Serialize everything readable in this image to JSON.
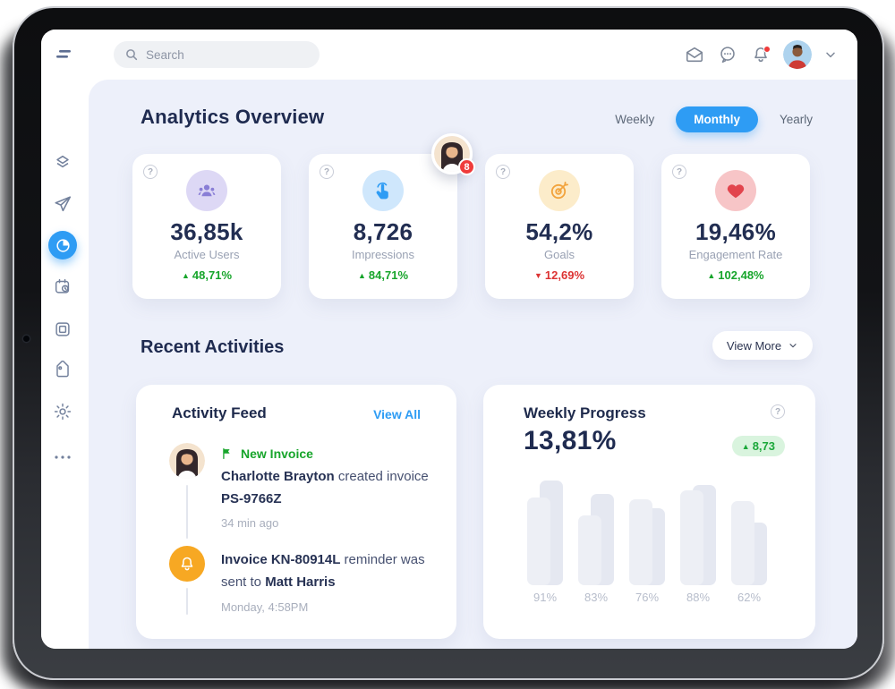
{
  "colors": {
    "accent_blue": "#2e9cf4",
    "navy": "#1f2b50",
    "green": "#17a52b",
    "red": "#dc3333",
    "main_bg": "#edf0fa",
    "badge_green_bg": "#d9f4de",
    "bell_orange": "#f7a823",
    "notif_red": "#ef3b3b"
  },
  "topbar": {
    "search_placeholder": "Search",
    "icons": [
      "menu-icon",
      "envelope-icon",
      "chat-icon",
      "bell-icon",
      "user-avatar",
      "chevron-down-icon"
    ],
    "bell_has_notification": true
  },
  "sidebar": {
    "items": [
      "layers",
      "paper-plane",
      "pie-chart",
      "calendar-clock",
      "frame",
      "tag",
      "gear",
      "more-dots"
    ],
    "active_item": "pie-chart"
  },
  "overview": {
    "title": "Analytics Overview",
    "tabs": [
      {
        "label": "Weekly",
        "active": false
      },
      {
        "label": "Monthly",
        "active": true
      },
      {
        "label": "Yearly",
        "active": false
      }
    ],
    "floating_avatar_badge": "8",
    "stats": [
      {
        "icon": "users",
        "icon_bg": "#ddd8f5",
        "icon_color": "#897ed6",
        "value": "36,85k",
        "label": "Active Users",
        "arrow": "▲",
        "delta": "48,71%",
        "delta_color": "#17a52b"
      },
      {
        "icon": "tap",
        "icon_bg": "#cfe7fc",
        "icon_color": "#2e9cf4",
        "value": "8,726",
        "label": "Impressions",
        "arrow": "▲",
        "delta": "84,71%",
        "delta_color": "#17a52b"
      },
      {
        "icon": "target",
        "icon_bg": "#fcecca",
        "icon_color": "#f2a33c",
        "value": "54,2%",
        "label": "Goals",
        "arrow": "▼",
        "delta": "12,69%",
        "delta_color": "#dc3333"
      },
      {
        "icon": "heart",
        "icon_bg": "#f7c5c7",
        "icon_color": "#e2444d",
        "value": "19,46%",
        "label": "Engagement Rate",
        "arrow": "▲",
        "delta": "102,48%",
        "delta_color": "#17a52b"
      }
    ]
  },
  "recent": {
    "title": "Recent Activities",
    "view_more": "View More"
  },
  "activity_feed": {
    "title": "Activity Feed",
    "view_all": "View All",
    "items": [
      {
        "tag": "New Invoice",
        "bold_a": "Charlotte Brayton",
        "plain_a": " created invoice ",
        "bold_b": "PS-9766Z",
        "time": "34  min ago"
      },
      {
        "bold_a": "Invoice KN-80914L",
        "plain_a": " reminder was sent to ",
        "bold_b": "Matt Harris",
        "time": "Monday, 4:58PM"
      }
    ]
  },
  "weekly_progress": {
    "title": "Weekly Progress",
    "value": "13,81%",
    "badge_arrow": "▲",
    "badge": "8,73",
    "chart_data": {
      "type": "bar",
      "title": "Weekly Progress",
      "categories": [
        "91%",
        "83%",
        "76%",
        "88%",
        "62%"
      ],
      "series": [
        {
          "name": "back",
          "values": [
            117,
            102,
            86,
            112,
            70
          ]
        },
        {
          "name": "front",
          "values": [
            98,
            78,
            96,
            106,
            94
          ]
        }
      ],
      "value_unit": "bar height px (plot area max 122)",
      "bar_colors": {
        "back": "#e5e8f1",
        "front": "#edeff5"
      },
      "grid": false,
      "legend": false
    }
  }
}
